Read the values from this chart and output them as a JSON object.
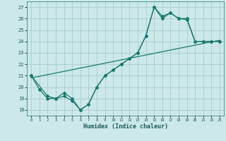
{
  "xlabel": "Humidex (Indice chaleur)",
  "background_color": "#cce8e8",
  "grid_color": "#aacccc",
  "line_color": "#1a7a6e",
  "xlim": [
    -0.5,
    23.5
  ],
  "ylim": [
    17.5,
    27.5
  ],
  "xticks": [
    0,
    1,
    2,
    3,
    4,
    5,
    6,
    7,
    8,
    9,
    10,
    11,
    12,
    13,
    14,
    15,
    16,
    17,
    18,
    19,
    20,
    21,
    22,
    23
  ],
  "yticks": [
    18,
    19,
    20,
    21,
    22,
    23,
    24,
    25,
    26,
    27
  ],
  "line1_x": [
    0,
    1,
    2,
    3,
    4,
    5,
    6,
    7,
    8,
    9,
    10,
    11,
    12,
    13,
    14,
    15,
    16,
    17,
    18,
    19,
    20,
    21,
    22,
    23
  ],
  "line1_y": [
    21,
    19.8,
    19,
    19,
    19.5,
    19,
    18,
    18.5,
    20,
    21,
    21.5,
    22,
    22.5,
    23,
    24.5,
    27,
    26,
    26.5,
    26,
    26,
    24,
    24,
    24,
    24
  ],
  "line2_x": [
    0,
    2,
    3,
    4,
    5,
    6,
    7,
    8,
    9,
    10,
    11,
    12,
    13,
    14,
    15,
    16,
    17,
    18,
    19,
    20,
    21,
    22,
    23
  ],
  "line2_y": [
    21,
    19.2,
    19,
    19.2,
    18.8,
    18,
    18.5,
    20,
    21,
    21.5,
    22,
    22.5,
    23,
    24.5,
    27,
    26.2,
    26.5,
    26,
    25.9,
    24,
    24,
    24,
    24
  ],
  "line3_x": [
    0,
    23
  ],
  "line3_y": [
    20.8,
    24.1
  ]
}
